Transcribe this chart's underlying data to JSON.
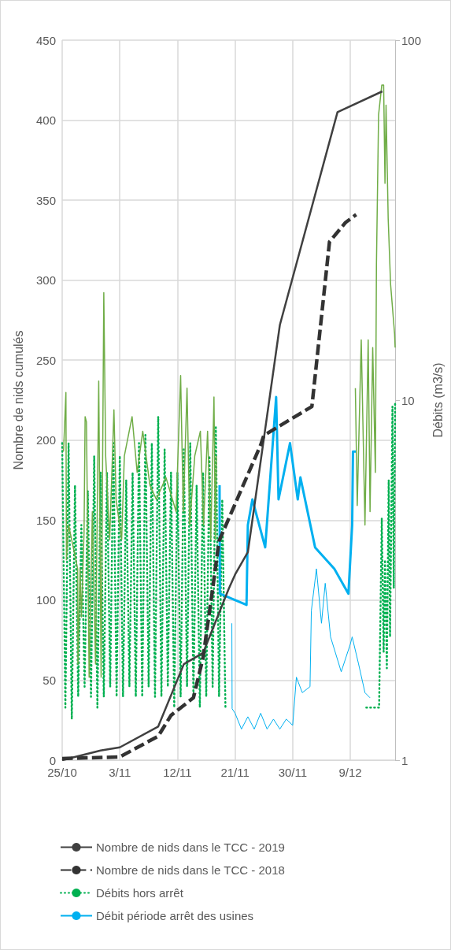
{
  "chart_data": {
    "type": "line",
    "ylabel": "Nombre de nids cumulés",
    "y2label": "Débits (m3/s)",
    "xlim": [
      "--10-25",
      "--12-16"
    ],
    "xticks": [
      {
        "value": "--10-25",
        "label": "25/10"
      },
      {
        "value": "--11-03",
        "label": "3/11"
      },
      {
        "value": "--11-12",
        "label": "12/11"
      },
      {
        "value": "--11-21",
        "label": "21/11"
      },
      {
        "value": "--11-30",
        "label": "30/11"
      },
      {
        "value": "--12-09",
        "label": "9/12"
      }
    ],
    "ylim": [
      0,
      450
    ],
    "yticks": [
      0,
      50,
      100,
      150,
      200,
      250,
      300,
      350,
      400,
      450
    ],
    "y2lim": [
      1,
      100
    ],
    "y2ticks": [
      1,
      10,
      100
    ],
    "log": "y2",
    "grid": true,
    "legend": "bottom",
    "marker": "none",
    "series": [
      {
        "name": "Nombre de nids dans le TCC - 2019",
        "color": "#404040",
        "line_style": "solid",
        "x": [
          "--10-25",
          "--10-31",
          "--11-03",
          "--11-09",
          "--11-13",
          "--11-16",
          "--11-20",
          "--11-21",
          "--11-23",
          "--11-28",
          "--12-07",
          "--12-14"
        ],
        "values": [
          0,
          6,
          8,
          21,
          60,
          67,
          107,
          116,
          130,
          272,
          405,
          418
        ]
      },
      {
        "name": "Nombre de nids dans le TCC - 2018",
        "color": "#333333",
        "line_style": "dashed",
        "x": [
          "--10-25",
          "--11-03",
          "--11-09",
          "--11-11",
          "--11-14T12:00",
          "--11-16",
          "--11-17T12:00",
          "--11-18T12:00",
          "--11-25",
          "--11-25T12:00",
          "--12-03",
          "--12-05T18:00",
          "--12-08T06:00",
          "--12-09T22:00"
        ],
        "values": [
          1,
          2,
          15,
          28,
          39,
          64,
          107,
          137,
          197,
          203,
          221,
          324,
          336,
          341
        ]
      },
      {
        "name": "Débits hors arrêt",
        "color": "#00b050",
        "line_style": "dotted",
        "axis": "y2",
        "x": [
          "--10-25",
          "--10-25T12:00",
          "--10-26",
          "--10-26T12:00",
          "--10-27",
          "--10-27T12:00",
          "--10-28",
          "--10-28T12:00",
          "--10-29",
          "--10-29T12:00",
          "--10-30",
          "--10-30T12:00",
          "--10-31",
          "--10-31T12:00",
          "--11-01",
          "--11-01T12:00",
          "--11-02",
          "--11-02T12:00",
          "--11-03",
          "--11-03T12:00",
          "--11-04",
          "--11-04T12:00",
          "--11-05",
          "--11-05T12:00",
          "--11-06",
          "--11-06T12:00",
          "--11-07",
          "--11-07T12:00",
          "--11-08",
          "--11-08T12:00",
          "--11-09",
          "--11-09T12:00",
          "--11-10",
          "--11-10T12:00",
          "--11-11",
          "--11-11T12:00",
          "--11-12",
          "--11-12T12:00",
          "--11-13",
          "--11-13T12:00",
          "--11-14",
          "--11-14T12:00",
          "--11-15",
          "--11-15T12:00",
          "--11-16",
          "--11-16T12:00",
          "--11-17",
          "--11-17T12:00",
          "--11-18",
          "--11-18T12:00",
          "--11-19",
          "--11-19T12:00",
          "--11-30",
          "--12-11T12:00",
          "--12-13T12:00",
          "--12-13T22:00",
          "--12-14T05:00",
          "--12-14T10:00",
          "--12-14T17:00",
          "--12-15",
          "--12-15T05:00",
          "--12-15T14:00",
          "--12-15T19:00",
          "--12-16"
        ],
        "values": [
          7.6,
          1.4,
          7.6,
          1.3,
          5.8,
          1.5,
          4.5,
          1.6,
          5.6,
          1.5,
          7,
          1.4,
          6.3,
          1.5,
          6.3,
          1.6,
          7.6,
          1.5,
          7,
          1.5,
          6,
          1.6,
          6.3,
          1.5,
          7.6,
          1.5,
          8,
          1.6,
          7.6,
          1.5,
          9,
          1.5,
          7.3,
          1.6,
          6.3,
          1.4,
          6.3,
          1.5,
          7.3,
          1.6,
          7.6,
          1.5,
          5.8,
          1.4,
          6.3,
          1.5,
          7,
          1.6,
          8.4,
          1.5,
          5.3,
          1.4,
          null,
          1.4,
          1.4,
          4.7,
          2.0,
          3.6,
          1.8,
          6,
          2.2,
          9.6,
          3,
          9.9
        ]
      },
      {
        "name": "Débit période arrêt des usines",
        "color": "#00b0f0",
        "line_style": "solid",
        "axis": "y2",
        "x": [
          "--11-20T12:00",
          "--11-20T13:00",
          "--11-21",
          "--11-22",
          "--11-23",
          "--11-24",
          "--11-25",
          "--11-26",
          "--11-27",
          "--11-28",
          "--11-29",
          "--11-30",
          "--11-30T14:00",
          "--12-01T12:00",
          "--12-02T17:00",
          "--12-02T22:00",
          "--12-03T17:00",
          "--12-04T12:00",
          "--12-05T02:00",
          "--12-05T22:00",
          "--12-07T14:00",
          "--12-09",
          "--12-09T07:00",
          "--12-10T07:00",
          "--12-11T07:00",
          "--12-12T02:00"
        ],
        "values": [
          2.4,
          1.39,
          1.35,
          1.22,
          1.32,
          1.22,
          1.35,
          1.22,
          1.3,
          1.22,
          1.3,
          1.25,
          1.7,
          1.54,
          1.6,
          2.6,
          3.4,
          2.4,
          3.1,
          2.2,
          1.76,
          2.1,
          2.2,
          1.85,
          1.54,
          1.49
        ]
      },
      {
        "color": "#00b0f0",
        "line_style": "solid",
        "axis": "y2",
        "x": [
          "--11-18T14:00",
          "--11-18T15:00",
          "--11-22T19:00",
          "--11-23",
          "--11-23T17:00",
          "--11-25T17:00",
          "--11-27T10:00",
          "--11-27T19:00",
          "--11-29T14:00",
          "--11-30T19:00",
          "--12-01T05:00",
          "--12-03T12:00",
          "--12-06T12:00",
          "--12-08T17:00",
          "--12-09T07:00",
          "--12-09T10:00",
          "--12-09T22:00"
        ],
        "values": [
          5.8,
          2.9,
          2.7,
          4.5,
          5.3,
          3.9,
          10.2,
          5.3,
          7.6,
          5.3,
          6.1,
          3.9,
          3.4,
          2.9,
          4.5,
          7.2,
          7.2
        ]
      },
      {
        "color": "#70ad47",
        "line_style": "solid",
        "axis": "y2",
        "x": [
          "--10-25T05:00",
          "--10-25T14:00",
          "--10-25T16:00",
          "--10-26",
          "--10-27",
          "--10-27T10:00",
          "--10-27T11:00",
          "--10-27T19:00",
          "--10-28",
          "--10-28T10:00",
          "--10-28T14:00",
          "--10-28T19:00",
          "--10-29T05:00",
          "--10-29T17:00",
          "--10-30T05:00",
          "--10-30T17:00",
          "--10-31T02:00",
          "--10-31T12:00",
          "--10-31T19:00",
          "--11-01T10:00",
          "--11-02T02:00",
          "--11-02T10:00",
          "--11-03T07:00",
          "--11-03T17:00",
          "--11-04T22:00",
          "--11-05T17:00",
          "--11-06T14:00",
          "--11-07T17:00",
          "--11-08T17:00",
          "--11-10T05:00",
          "--11-11T19:00",
          "--11-12T12:00",
          "--11-12T22:00",
          "--11-13T12:00",
          "--11-13T22:00",
          "--11-14T17:00",
          "--11-15T14:00",
          "--11-16T02:00",
          "--11-16T17:00",
          "--11-17T05:00",
          "--11-17T17:00",
          "--11-17T22:00",
          "--11-18T02:00",
          "--11-30",
          "--12-09T19:00",
          "--12-10T02:00",
          "--12-10T17:00",
          "--12-11T07:00",
          "--12-11T19:00",
          "--12-12T02:00",
          "--12-12T12:00",
          "--12-12T22:00",
          "--12-13T02:00",
          "--12-13T10:00",
          "--12-13T22:00",
          "--12-14T05:00",
          "--12-14T10:00",
          "--12-14T14:00",
          "--12-14T22:00",
          "--12-15T07:00",
          "--12-15T22:00",
          "--12-16"
        ],
        "values": [
          7.2,
          10.5,
          3.6,
          4.5,
          3.7,
          3.4,
          1.85,
          3.4,
          2.5,
          4.3,
          9.0,
          8.7,
          1.7,
          4.9,
          1.85,
          11.3,
          1.7,
          19.9,
          7.0,
          4.1,
          9.4,
          5.3,
          4.1,
          7.0,
          9.0,
          6.3,
          8.2,
          5.8,
          5.3,
          6.1,
          4.9,
          11.7,
          4.9,
          10.8,
          4.5,
          7.0,
          8.2,
          4.5,
          8.2,
          4.1,
          10.2,
          4.1,
          7.0,
          null,
          10.8,
          5.1,
          14.7,
          4.5,
          14.7,
          4.9,
          14,
          6.3,
          23.8,
          62,
          75,
          75,
          40,
          66,
          32,
          21,
          15.3,
          14
        ]
      }
    ]
  }
}
